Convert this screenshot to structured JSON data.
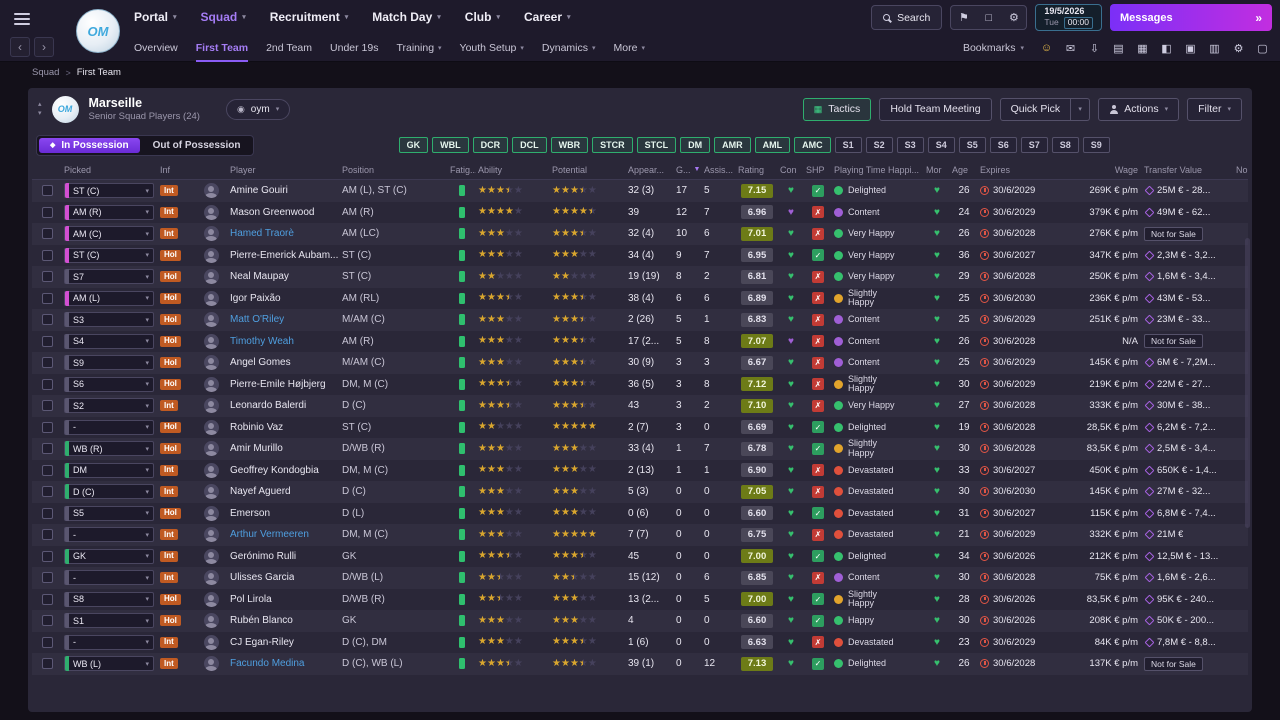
{
  "club": {
    "monogram": "OM"
  },
  "icons": {
    "caret_down": "▾",
    "caret_up": "▴",
    "back": "‹",
    "forward": "›",
    "double_arrow": "»",
    "bookmark": "⚑",
    "screens": "□",
    "gear": "⚙",
    "eye": "◉",
    "sort_desc": "▼",
    "check": "✓",
    "cross": "✗",
    "heart": "♥",
    "star": "★",
    "breadcrumb_sep": ">",
    "diamond": "◆",
    "tactics": "▦"
  },
  "topbar": {
    "nav": [
      {
        "label": "Portal",
        "caret": true,
        "active": false
      },
      {
        "label": "Squad",
        "caret": true,
        "active": true
      },
      {
        "label": "Recruitment",
        "caret": true,
        "active": false
      },
      {
        "label": "Match Day",
        "caret": true,
        "active": false
      },
      {
        "label": "Club",
        "caret": true,
        "active": false
      },
      {
        "label": "Career",
        "caret": true,
        "active": false
      }
    ],
    "search_label": "Search",
    "date": "19/5/2026",
    "weekday": "Tue",
    "time": "00:00",
    "messages_label": "Messages"
  },
  "subnav": {
    "items": [
      {
        "label": "Overview"
      },
      {
        "label": "First Team",
        "active": true
      },
      {
        "label": "2nd Team"
      },
      {
        "label": "Under 19s"
      },
      {
        "label": "Training",
        "caret": true
      },
      {
        "label": "Youth Setup",
        "caret": true
      },
      {
        "label": "Dynamics",
        "caret": true
      },
      {
        "label": "More",
        "caret": true
      }
    ],
    "bookmarks_label": "Bookmarks",
    "icons": [
      {
        "name": "morale-smiley-icon",
        "glyph": "☺",
        "color": "#f0c24b"
      },
      {
        "name": "inbox-icon",
        "glyph": "✉"
      },
      {
        "name": "save-icon",
        "glyph": "⇩"
      },
      {
        "name": "news-icon",
        "glyph": "▤"
      },
      {
        "name": "calendar-icon",
        "glyph": "▦"
      },
      {
        "name": "media-icon",
        "glyph": "◧"
      },
      {
        "name": "notes-icon",
        "glyph": "▣"
      },
      {
        "name": "social-icon",
        "glyph": "▥"
      },
      {
        "name": "settings-icon",
        "glyph": "⚙"
      },
      {
        "name": "help-icon",
        "glyph": "▢"
      }
    ]
  },
  "breadcrumb": {
    "items": [
      "Squad",
      "First Team"
    ]
  },
  "panel": {
    "club_name": "Marseille",
    "subtitle": "Senior Squad Players (24)",
    "view_name": "oym",
    "tactics_label": "Tactics",
    "hold_meeting_label": "Hold Team Meeting",
    "quick_pick_label": "Quick Pick",
    "actions_label": "Actions",
    "filter_label": "Filter",
    "in_possession": "In Possession",
    "out_possession": "Out of Possession",
    "position_filters_green": [
      "GK",
      "WBL",
      "DCR",
      "DCL",
      "WBR",
      "STCR",
      "STCL",
      "DM",
      "AMR",
      "AML",
      "AMC"
    ],
    "position_filters_gray": [
      "S1",
      "S2",
      "S3",
      "S4",
      "S5",
      "S6",
      "S7",
      "S8",
      "S9"
    ]
  },
  "table": {
    "sort_col": 10,
    "columns": [
      "",
      "Picked",
      "Inf",
      "",
      "Player",
      "Position",
      "Fatig...",
      "Ability",
      "Potential",
      "Appear...",
      "G...",
      "Assis...",
      "Rating",
      "Con",
      "SHP",
      "Playing Time Happi...",
      "Mor",
      "Age",
      "Expires",
      "Wage",
      "Transfer Value",
      "No..."
    ],
    "rows": [
      {
        "picked": "ST (C)",
        "pc": "atk",
        "inf": "Int",
        "name": "Amine Gouiri",
        "link": false,
        "position": "AM (L), ST (C)",
        "ability": 3.5,
        "potential": 3.5,
        "apps": "32 (3)",
        "goals": "17",
        "assists": "5",
        "rating": "7.15",
        "con": "green",
        "shp": true,
        "happy": "Delighted",
        "hc": "green",
        "mor": "green",
        "age": "26",
        "expires": "30/6/2029",
        "wage": "269K € p/m",
        "transfer": "25M € - 28...",
        "nfs": false
      },
      {
        "picked": "AM (R)",
        "pc": "atk",
        "inf": "Int",
        "name": "Mason Greenwood",
        "link": false,
        "position": "AM (R)",
        "ability": 4,
        "potential": 4.5,
        "apps": "39",
        "goals": "12",
        "assists": "7",
        "rating": "6.96",
        "con": "purple",
        "shp": false,
        "happy": "Content",
        "hc": "purple",
        "mor": "green",
        "age": "24",
        "expires": "30/6/2029",
        "wage": "379K € p/m",
        "transfer": "49M € - 62...",
        "nfs": false
      },
      {
        "picked": "AM (C)",
        "pc": "atk",
        "inf": "Int",
        "name": "Hamed Traorè",
        "link": true,
        "position": "AM (LC)",
        "ability": 3,
        "potential": 3.5,
        "apps": "32 (4)",
        "goals": "10",
        "assists": "6",
        "rating": "7.01",
        "con": "green",
        "shp": false,
        "happy": "Very Happy",
        "hc": "green",
        "mor": "green",
        "age": "26",
        "expires": "30/6/2028",
        "wage": "276K € p/m",
        "transfer": "Not for Sale",
        "nfs": true
      },
      {
        "picked": "ST (C)",
        "pc": "atk",
        "inf": "Hol",
        "name": "Pierre-Emerick Aubam...",
        "link": false,
        "position": "ST (C)",
        "ability": 3,
        "potential": 3,
        "apps": "34 (4)",
        "goals": "9",
        "assists": "7",
        "rating": "6.95",
        "con": "green",
        "shp": true,
        "happy": "Very Happy",
        "hc": "green",
        "mor": "green",
        "age": "36",
        "expires": "30/6/2027",
        "wage": "347K € p/m",
        "transfer": "2,3M € - 3,2...",
        "nfs": false
      },
      {
        "picked": "S7",
        "pc": "none",
        "inf": "Hol",
        "name": "Neal Maupay",
        "link": false,
        "position": "ST (C)",
        "ability": 2,
        "potential": 2,
        "apps": "19 (19)",
        "goals": "8",
        "assists": "2",
        "rating": "6.81",
        "con": "green",
        "shp": false,
        "happy": "Very Happy",
        "hc": "green",
        "mor": "green",
        "age": "29",
        "expires": "30/6/2028",
        "wage": "250K € p/m",
        "transfer": "1,6M € - 3,4...",
        "nfs": false
      },
      {
        "picked": "AM (L)",
        "pc": "atk",
        "inf": "Hol",
        "name": "Igor Paixão",
        "link": false,
        "position": "AM (RL)",
        "ability": 3.5,
        "potential": 3.5,
        "apps": "38 (4)",
        "goals": "6",
        "assists": "6",
        "rating": "6.89",
        "con": "green",
        "shp": false,
        "happy": "Slightly Happy",
        "hc": "yellow",
        "mor": "green",
        "age": "25",
        "expires": "30/6/2030",
        "wage": "236K € p/m",
        "transfer": "43M € - 53...",
        "nfs": false
      },
      {
        "picked": "S3",
        "pc": "none",
        "inf": "Hol",
        "name": "Matt O'Riley",
        "link": true,
        "position": "M/AM (C)",
        "ability": 3,
        "potential": 3.5,
        "apps": "2 (26)",
        "goals": "5",
        "assists": "1",
        "rating": "6.83",
        "con": "green",
        "shp": false,
        "happy": "Content",
        "hc": "purple",
        "mor": "green",
        "age": "25",
        "expires": "30/6/2029",
        "wage": "251K € p/m",
        "transfer": "23M € - 33...",
        "nfs": false
      },
      {
        "picked": "S4",
        "pc": "none",
        "inf": "Hol",
        "name": "Timothy Weah",
        "link": true,
        "position": "AM (R)",
        "ability": 3,
        "potential": 3.5,
        "apps": "17 (2...",
        "goals": "5",
        "assists": "8",
        "rating": "7.07",
        "con": "purple",
        "shp": false,
        "happy": "Content",
        "hc": "purple",
        "mor": "green",
        "age": "26",
        "expires": "30/6/2028",
        "wage": "N/A",
        "transfer": "Not for Sale",
        "nfs": true
      },
      {
        "picked": "S9",
        "pc": "none",
        "inf": "Hol",
        "name": "Angel Gomes",
        "link": false,
        "position": "M/AM (C)",
        "ability": 3,
        "potential": 3.5,
        "apps": "30 (9)",
        "goals": "3",
        "assists": "3",
        "rating": "6.67",
        "con": "green",
        "shp": false,
        "happy": "Content",
        "hc": "purple",
        "mor": "green",
        "age": "25",
        "expires": "30/6/2029",
        "wage": "145K € p/m",
        "transfer": "6M € - 7,2M...",
        "nfs": false
      },
      {
        "picked": "S6",
        "pc": "none",
        "inf": "Hol",
        "name": "Pierre-Emile Højbjerg",
        "link": false,
        "position": "DM, M (C)",
        "ability": 3.5,
        "potential": 3.5,
        "apps": "36 (5)",
        "goals": "3",
        "assists": "8",
        "rating": "7.12",
        "con": "green",
        "shp": false,
        "happy": "Slightly Happy",
        "hc": "yellow",
        "mor": "green",
        "age": "30",
        "expires": "30/6/2029",
        "wage": "219K € p/m",
        "transfer": "22M € - 27...",
        "nfs": false
      },
      {
        "picked": "S2",
        "pc": "none",
        "inf": "Int",
        "name": "Leonardo Balerdi",
        "link": false,
        "position": "D (C)",
        "ability": 3.5,
        "potential": 3.5,
        "apps": "43",
        "goals": "3",
        "assists": "2",
        "rating": "7.10",
        "con": "green",
        "shp": false,
        "happy": "Very Happy",
        "hc": "green",
        "mor": "green",
        "age": "27",
        "expires": "30/6/2028",
        "wage": "333K € p/m",
        "transfer": "30M € - 38...",
        "nfs": false
      },
      {
        "picked": "-",
        "pc": "none",
        "inf": "Hol",
        "name": "Robinio Vaz",
        "link": false,
        "position": "ST (C)",
        "ability": 2,
        "potential": 5,
        "apps": "2 (7)",
        "goals": "3",
        "assists": "0",
        "rating": "6.69",
        "con": "green",
        "shp": true,
        "happy": "Delighted",
        "hc": "green",
        "mor": "green",
        "age": "19",
        "expires": "30/6/2028",
        "wage": "28,5K € p/m",
        "transfer": "6,2M € - 7,2...",
        "nfs": false
      },
      {
        "picked": "WB (R)",
        "pc": "def",
        "inf": "Hol",
        "name": "Amir Murillo",
        "link": false,
        "position": "D/WB (R)",
        "ability": 3,
        "potential": 3,
        "apps": "33 (4)",
        "goals": "1",
        "assists": "7",
        "rating": "6.78",
        "con": "green",
        "shp": true,
        "happy": "Slightly Happy",
        "hc": "yellow",
        "mor": "green",
        "age": "30",
        "expires": "30/6/2028",
        "wage": "83,5K € p/m",
        "transfer": "2,5M € - 3,4...",
        "nfs": false
      },
      {
        "picked": "DM",
        "pc": "def",
        "inf": "Int",
        "name": "Geoffrey Kondogbia",
        "link": false,
        "position": "DM, M (C)",
        "ability": 3,
        "potential": 3,
        "apps": "2 (13)",
        "goals": "1",
        "assists": "1",
        "rating": "6.90",
        "con": "green",
        "shp": false,
        "happy": "Devastated",
        "hc": "red",
        "mor": "green",
        "age": "33",
        "expires": "30/6/2027",
        "wage": "450K € p/m",
        "transfer": "650K € - 1,4...",
        "nfs": false
      },
      {
        "picked": "D (C)",
        "pc": "def",
        "inf": "Int",
        "name": "Nayef Aguerd",
        "link": false,
        "position": "D (C)",
        "ability": 3,
        "potential": 3,
        "apps": "5 (3)",
        "goals": "0",
        "assists": "0",
        "rating": "7.05",
        "con": "green",
        "shp": false,
        "happy": "Devastated",
        "hc": "red",
        "mor": "green",
        "age": "30",
        "expires": "30/6/2030",
        "wage": "145K € p/m",
        "transfer": "27M € - 32...",
        "nfs": false
      },
      {
        "picked": "S5",
        "pc": "none",
        "inf": "Hol",
        "name": "Emerson",
        "link": false,
        "position": "D (L)",
        "ability": 3,
        "potential": 3,
        "apps": "0 (6)",
        "goals": "0",
        "assists": "0",
        "rating": "6.60",
        "con": "green",
        "shp": true,
        "happy": "Devastated",
        "hc": "red",
        "mor": "green",
        "age": "31",
        "expires": "30/6/2027",
        "wage": "115K € p/m",
        "transfer": "6,8M € - 7,4...",
        "nfs": false
      },
      {
        "picked": "-",
        "pc": "none",
        "inf": "Int",
        "name": "Arthur Vermeeren",
        "link": true,
        "position": "DM, M (C)",
        "ability": 3,
        "potential": 5,
        "apps": "7 (7)",
        "goals": "0",
        "assists": "0",
        "rating": "6.75",
        "con": "green",
        "shp": false,
        "happy": "Devastated",
        "hc": "red",
        "mor": "green",
        "age": "21",
        "expires": "30/6/2029",
        "wage": "332K € p/m",
        "transfer": "21M €",
        "nfs": false
      },
      {
        "picked": "GK",
        "pc": "def",
        "inf": "Int",
        "name": "Gerónimo Rulli",
        "link": false,
        "position": "GK",
        "ability": 3.5,
        "potential": 3.5,
        "apps": "45",
        "goals": "0",
        "assists": "0",
        "rating": "7.00",
        "con": "green",
        "shp": true,
        "happy": "Delighted",
        "hc": "green",
        "mor": "green",
        "age": "34",
        "expires": "30/6/2026",
        "wage": "212K € p/m",
        "transfer": "12,5M € - 13...",
        "nfs": false
      },
      {
        "picked": "-",
        "pc": "none",
        "inf": "Int",
        "name": "Ulisses Garcia",
        "link": false,
        "position": "D/WB (L)",
        "ability": 2.5,
        "potential": 2.5,
        "apps": "15 (12)",
        "goals": "0",
        "assists": "6",
        "rating": "6.85",
        "con": "green",
        "shp": false,
        "happy": "Content",
        "hc": "purple",
        "mor": "green",
        "age": "30",
        "expires": "30/6/2028",
        "wage": "75K € p/m",
        "transfer": "1,6M € - 2,6...",
        "nfs": false
      },
      {
        "picked": "S8",
        "pc": "none",
        "inf": "Hol",
        "name": "Pol Lirola",
        "link": false,
        "position": "D/WB (R)",
        "ability": 2.5,
        "potential": 3,
        "apps": "13 (2...",
        "goals": "0",
        "assists": "5",
        "rating": "7.00",
        "con": "green",
        "shp": true,
        "happy": "Slightly Happy",
        "hc": "yellow",
        "mor": "green",
        "age": "28",
        "expires": "30/6/2026",
        "wage": "83,5K € p/m",
        "transfer": "95K € - 240...",
        "nfs": false
      },
      {
        "picked": "S1",
        "pc": "none",
        "inf": "Hol",
        "name": "Rubén Blanco",
        "link": false,
        "position": "GK",
        "ability": 3,
        "potential": 3,
        "apps": "4",
        "goals": "0",
        "assists": "0",
        "rating": "6.60",
        "con": "green",
        "shp": true,
        "happy": "Happy",
        "hc": "green",
        "mor": "green",
        "age": "30",
        "expires": "30/6/2026",
        "wage": "208K € p/m",
        "transfer": "50K € - 200...",
        "nfs": false
      },
      {
        "picked": "-",
        "pc": "none",
        "inf": "Int",
        "name": "CJ Egan-Riley",
        "link": false,
        "position": "D (C), DM",
        "ability": 3,
        "potential": 3.5,
        "apps": "1 (6)",
        "goals": "0",
        "assists": "0",
        "rating": "6.63",
        "con": "green",
        "shp": false,
        "happy": "Devastated",
        "hc": "red",
        "mor": "green",
        "age": "23",
        "expires": "30/6/2029",
        "wage": "84K € p/m",
        "transfer": "7,8M € - 8,8...",
        "nfs": false
      },
      {
        "picked": "WB (L)",
        "pc": "def",
        "inf": "Int",
        "name": "Facundo Medina",
        "link": true,
        "position": "D (C), WB (L)",
        "ability": 3.5,
        "potential": 3.5,
        "apps": "39 (1)",
        "goals": "0",
        "assists": "12",
        "rating": "7.13",
        "con": "green",
        "shp": true,
        "happy": "Delighted",
        "hc": "green",
        "mor": "green",
        "age": "26",
        "expires": "30/6/2028",
        "wage": "137K € p/m",
        "transfer": "Not for Sale",
        "nfs": true
      }
    ]
  }
}
